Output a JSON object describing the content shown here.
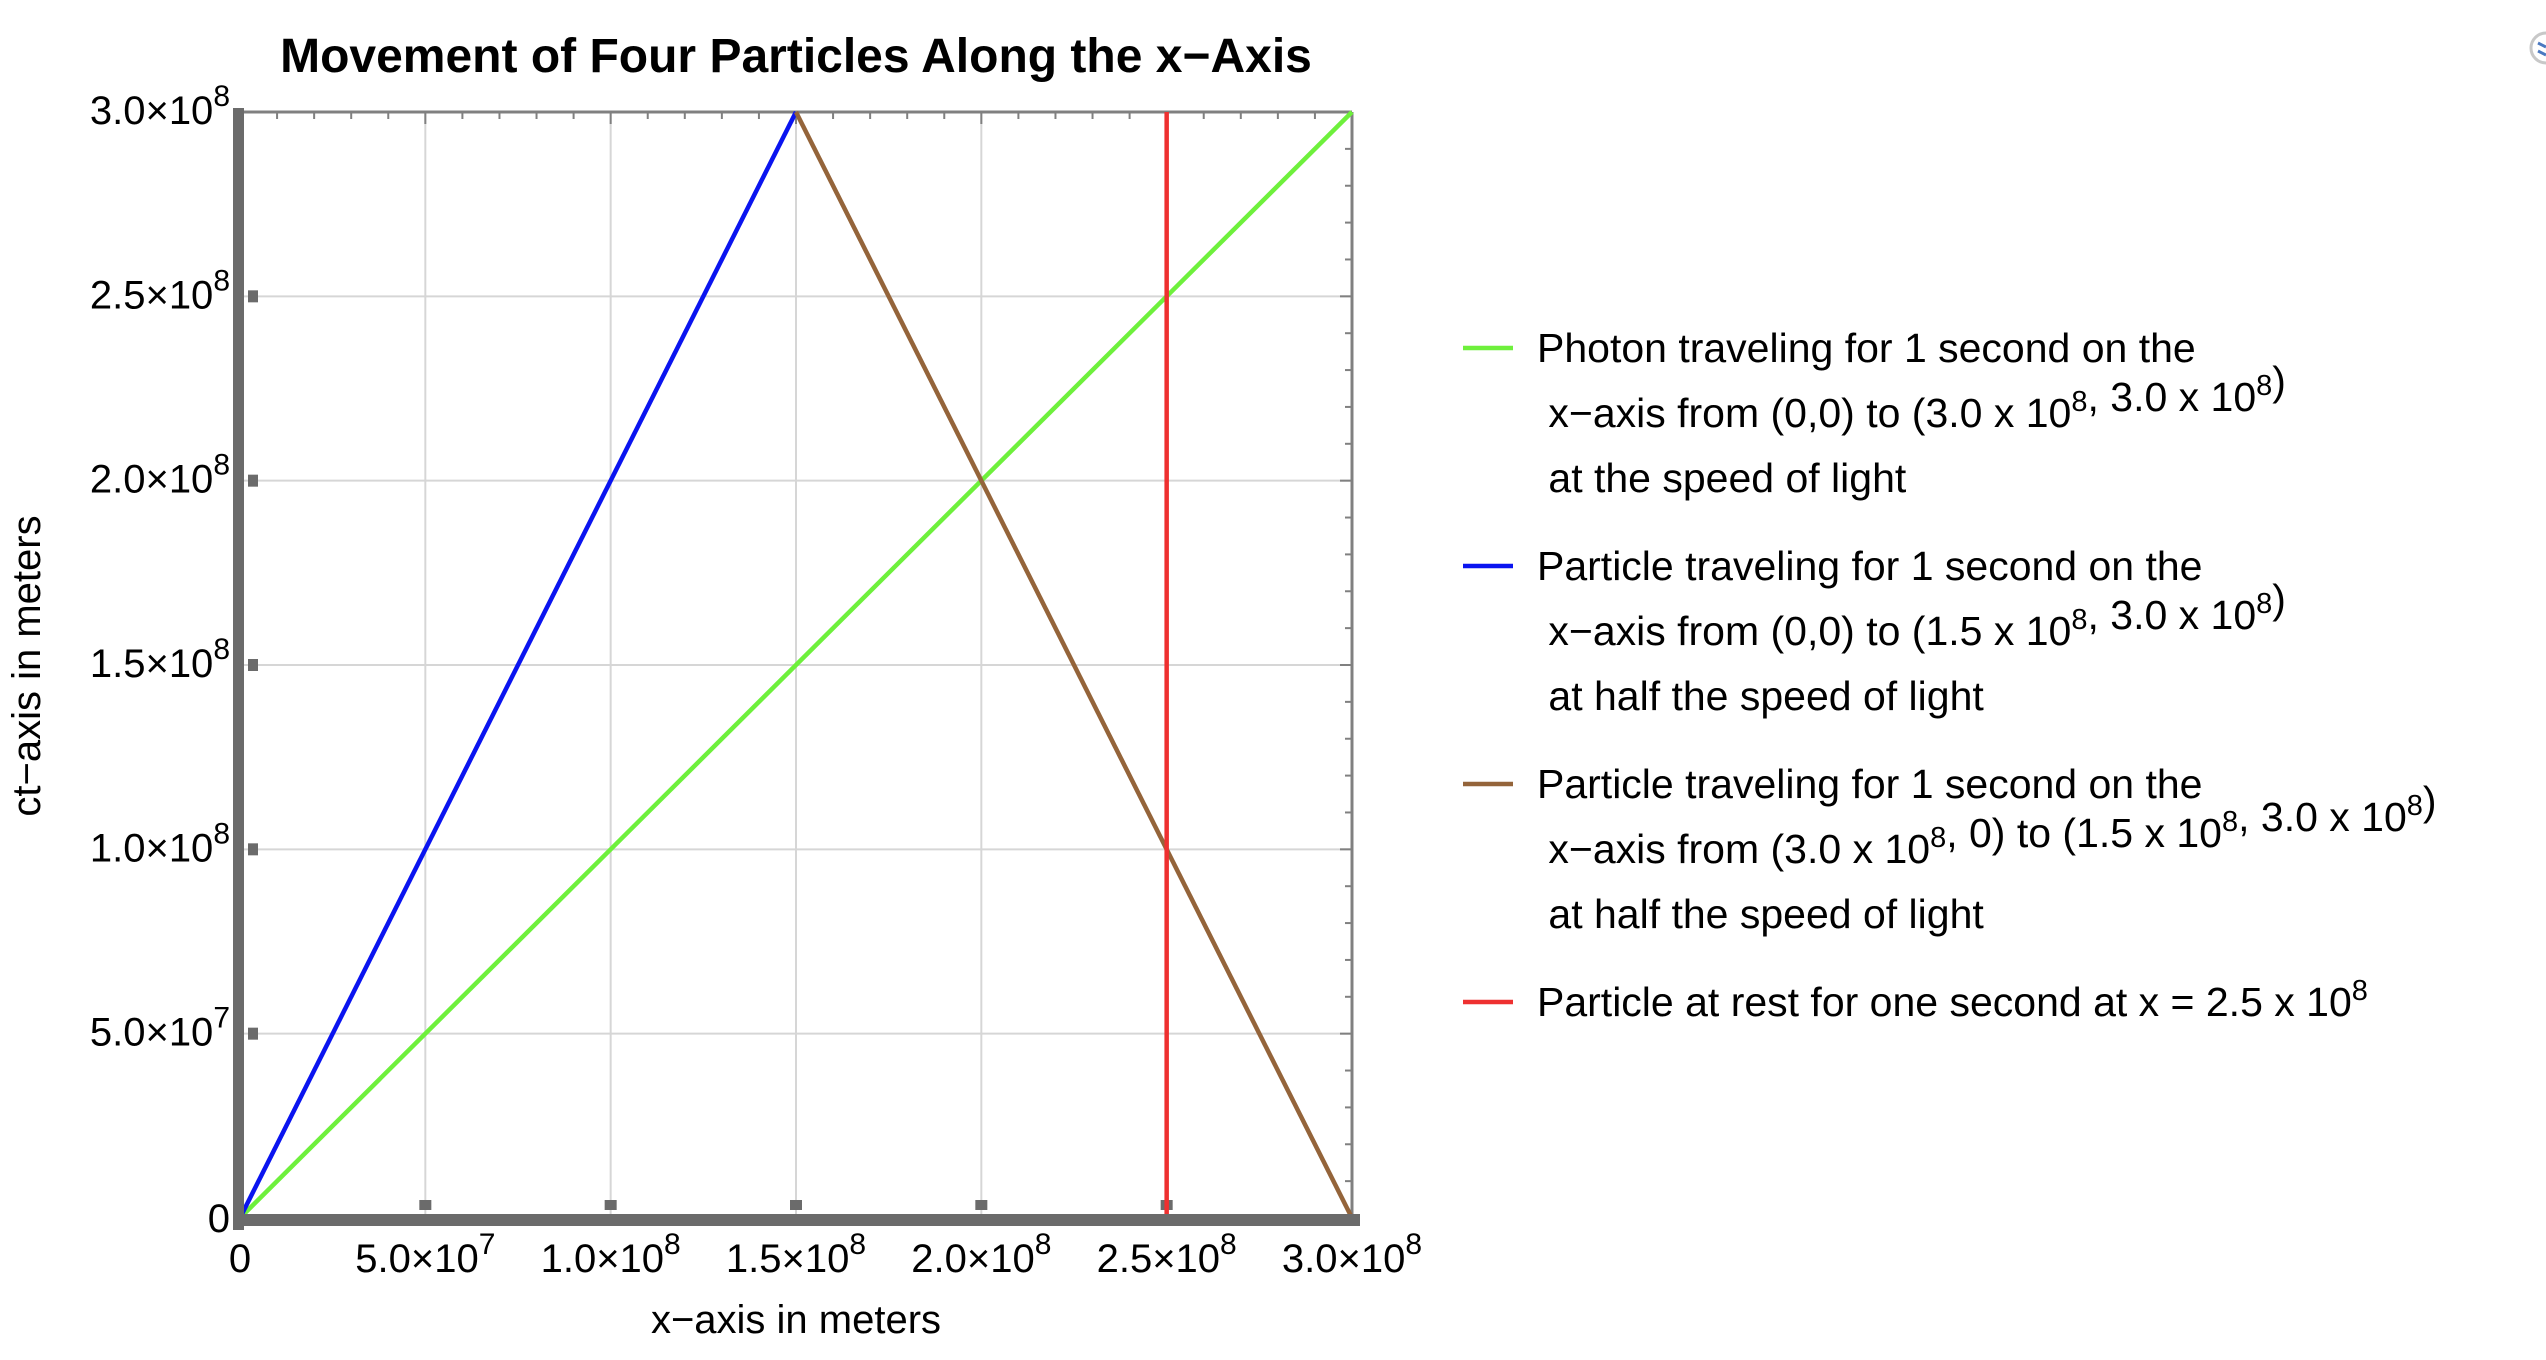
{
  "chart_data": {
    "type": "line",
    "title": "Movement of Four Particles Along the x−Axis",
    "xlabel": "x−axis in meters",
    "ylabel": "ct−axis in meters",
    "xlim": [
      0,
      300000000
    ],
    "ylim": [
      0,
      300000000
    ],
    "grid": true,
    "legend_position": "right",
    "x_ticks": [
      {
        "value": 0,
        "mantissa": "0",
        "exp": ""
      },
      {
        "value": 50000000,
        "mantissa": "5.0",
        "exp": "7"
      },
      {
        "value": 100000000,
        "mantissa": "1.0",
        "exp": "8"
      },
      {
        "value": 150000000,
        "mantissa": "1.5",
        "exp": "8"
      },
      {
        "value": 200000000,
        "mantissa": "2.0",
        "exp": "8"
      },
      {
        "value": 250000000,
        "mantissa": "2.5",
        "exp": "8"
      },
      {
        "value": 300000000,
        "mantissa": "3.0",
        "exp": "8"
      }
    ],
    "y_ticks": [
      {
        "value": 0,
        "mantissa": "0",
        "exp": ""
      },
      {
        "value": 50000000,
        "mantissa": "5.0",
        "exp": "7"
      },
      {
        "value": 100000000,
        "mantissa": "1.0",
        "exp": "8"
      },
      {
        "value": 150000000,
        "mantissa": "1.5",
        "exp": "8"
      },
      {
        "value": 200000000,
        "mantissa": "2.0",
        "exp": "8"
      },
      {
        "value": 250000000,
        "mantissa": "2.5",
        "exp": "8"
      },
      {
        "value": 300000000,
        "mantissa": "3.0",
        "exp": "8"
      }
    ],
    "times_sign": "×10",
    "series": [
      {
        "name": "photon",
        "color": "#6ef03c",
        "points": [
          [
            0,
            0
          ],
          [
            300000000,
            300000000
          ]
        ],
        "legend": [
          [
            {
              "t": "Photon traveling for 1 second on the"
            }
          ],
          [
            {
              "t": " x−axis from (0,0) to (3.0 x 10"
            },
            {
              "sup": "8"
            },
            {
              "t": ", 3.0 x 10"
            },
            {
              "sup": "8"
            },
            {
              "t": ")"
            }
          ],
          [
            {
              "t": " at the speed of light"
            }
          ]
        ]
      },
      {
        "name": "particle-half-speed-right",
        "color": "#0a14f0",
        "points": [
          [
            0,
            0
          ],
          [
            150000000,
            300000000
          ]
        ],
        "legend": [
          [
            {
              "t": "Particle traveling for 1 second on the"
            }
          ],
          [
            {
              "t": " x−axis from (0,0) to (1.5 x 10"
            },
            {
              "sup": "8"
            },
            {
              "t": ", 3.0 x 10"
            },
            {
              "sup": "8"
            },
            {
              "t": ")"
            }
          ],
          [
            {
              "t": " at half the speed of light"
            }
          ]
        ]
      },
      {
        "name": "particle-half-speed-left",
        "color": "#94643a",
        "points": [
          [
            300000000,
            0
          ],
          [
            150000000,
            300000000
          ]
        ],
        "legend": [
          [
            {
              "t": "Particle traveling for 1 second on the"
            }
          ],
          [
            {
              "t": " x−axis from (3.0 x 10"
            },
            {
              "sup": "8"
            },
            {
              "t": ", 0) to (1.5 x 10"
            },
            {
              "sup": "8"
            },
            {
              "t": ", 3.0 x 10"
            },
            {
              "sup": "8"
            },
            {
              "t": ")"
            }
          ],
          [
            {
              "t": " at half the speed of light"
            }
          ]
        ]
      },
      {
        "name": "particle-at-rest",
        "color": "#ee3030",
        "points": [
          [
            250000000,
            0
          ],
          [
            250000000,
            300000000
          ]
        ],
        "legend": [
          [
            {
              "t": "Particle at rest for one second at x = 2.5 x 10"
            },
            {
              "sup": "8"
            }
          ]
        ]
      }
    ]
  }
}
